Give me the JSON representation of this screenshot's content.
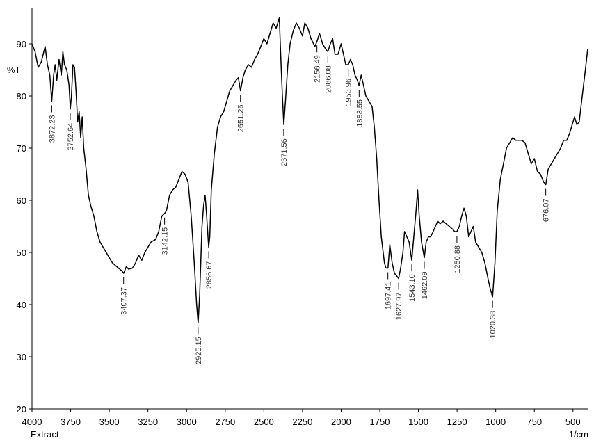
{
  "chart_data": {
    "type": "line",
    "y_label": "%T",
    "x_label": "1/cm",
    "legend_text": "Extract",
    "xlim": [
      4000,
      400
    ],
    "ylim": [
      20,
      96.8
    ],
    "xticks": [
      4000,
      3750,
      3500,
      3250,
      3000,
      2750,
      2500,
      2250,
      2000,
      1750,
      1500,
      1250,
      1000,
      750,
      500
    ],
    "yticks": [
      20,
      30,
      40,
      50,
      60,
      70,
      80,
      90
    ],
    "x": [
      4000,
      3980,
      3960,
      3940,
      3915,
      3900,
      3885,
      3872,
      3860,
      3850,
      3840,
      3825,
      3810,
      3800,
      3790,
      3775,
      3760,
      3752,
      3745,
      3735,
      3725,
      3715,
      3705,
      3695,
      3685,
      3675,
      3665,
      3650,
      3635,
      3620,
      3600,
      3580,
      3560,
      3540,
      3520,
      3500,
      3480,
      3460,
      3440,
      3420,
      3407,
      3390,
      3375,
      3350,
      3330,
      3310,
      3290,
      3270,
      3250,
      3230,
      3200,
      3180,
      3160,
      3142,
      3130,
      3110,
      3090,
      3070,
      3050,
      3030,
      3010,
      2990,
      2970,
      2950,
      2935,
      2925,
      2915,
      2900,
      2890,
      2880,
      2870,
      2857,
      2850,
      2840,
      2820,
      2800,
      2780,
      2760,
      2740,
      2720,
      2700,
      2680,
      2665,
      2651,
      2635,
      2620,
      2600,
      2580,
      2560,
      2540,
      2520,
      2500,
      2480,
      2460,
      2440,
      2420,
      2400,
      2390,
      2380,
      2371,
      2360,
      2345,
      2330,
      2310,
      2290,
      2270,
      2250,
      2235,
      2215,
      2195,
      2170,
      2156,
      2140,
      2120,
      2100,
      2086,
      2070,
      2055,
      2040,
      2020,
      2000,
      1985,
      1970,
      1954,
      1940,
      1925,
      1910,
      1895,
      1884,
      1870,
      1855,
      1840,
      1820,
      1800,
      1785,
      1770,
      1755,
      1740,
      1720,
      1710,
      1697,
      1685,
      1670,
      1655,
      1640,
      1628,
      1615,
      1600,
      1590,
      1575,
      1560,
      1543,
      1530,
      1515,
      1505,
      1495,
      1480,
      1462,
      1450,
      1435,
      1420,
      1405,
      1390,
      1375,
      1360,
      1340,
      1320,
      1300,
      1280,
      1265,
      1251,
      1235,
      1220,
      1205,
      1190,
      1175,
      1160,
      1145,
      1130,
      1110,
      1090,
      1070,
      1050,
      1035,
      1020,
      1005,
      990,
      970,
      950,
      930,
      910,
      890,
      870,
      850,
      830,
      810,
      790,
      770,
      750,
      730,
      710,
      690,
      676,
      660,
      640,
      620,
      600,
      580,
      560,
      540,
      520,
      500,
      490,
      475,
      460,
      440,
      420,
      405
    ],
    "series": [
      {
        "color": "#000000",
        "values": [
          90,
          88.5,
          85.5,
          86.5,
          89.5,
          86,
          84,
          79,
          84,
          86,
          83,
          87,
          84,
          88.5,
          86,
          85,
          82,
          77.5,
          80,
          86,
          85.5,
          81,
          75,
          77,
          72,
          76,
          70,
          66,
          61,
          59,
          57,
          54,
          52,
          51,
          50,
          49,
          48,
          47.5,
          47,
          46.5,
          46,
          47.3,
          46.8,
          47,
          48,
          49.5,
          48.5,
          50,
          51,
          52,
          52.5,
          54,
          57,
          57.5,
          58,
          61,
          62,
          62.5,
          64,
          65.5,
          65,
          63.5,
          57,
          48,
          40,
          36.5,
          42,
          55,
          59,
          61,
          57,
          51,
          53,
          62,
          69,
          74,
          76,
          77,
          79,
          81,
          82,
          83,
          83.5,
          81,
          83.5,
          85,
          86,
          85.5,
          87,
          88,
          89.5,
          91,
          90,
          92,
          94,
          93,
          95,
          87,
          80,
          74.5,
          79,
          86,
          90,
          92.5,
          94,
          93,
          91.5,
          94,
          93,
          91,
          89.5,
          90.5,
          92,
          90,
          89,
          88.5,
          90,
          91,
          88,
          88,
          90,
          88,
          86,
          86,
          87,
          86,
          84,
          83,
          82,
          84,
          82,
          80,
          79,
          78,
          74,
          68,
          60,
          53,
          48,
          47,
          47,
          51.5,
          48,
          46,
          45.5,
          45,
          47,
          50,
          54,
          53,
          52,
          48.5,
          53,
          58,
          62,
          57,
          52,
          49,
          52,
          53,
          53,
          54,
          55,
          56,
          55.5,
          56,
          55.5,
          55,
          54.5,
          54,
          54,
          55,
          57,
          58.5,
          57,
          53,
          54,
          55,
          52,
          51,
          50,
          48,
          45,
          43,
          41.5,
          48,
          58,
          64,
          67,
          70,
          71,
          72,
          71.5,
          71.5,
          71.5,
          71,
          69,
          67,
          68,
          65.5,
          65,
          63.5,
          63,
          66,
          67,
          68,
          69,
          70,
          71.5,
          71.5,
          73,
          75,
          76,
          74.5,
          75,
          80,
          85,
          89
        ]
      }
    ],
    "annotations": [
      {
        "x": 3872.23,
        "y": 79,
        "label": "3872.23"
      },
      {
        "x": 3752.64,
        "y": 77.5,
        "label": "3752.64"
      },
      {
        "x": 3407.37,
        "y": 46,
        "label": "3407.37"
      },
      {
        "x": 3142.15,
        "y": 57.5,
        "label": "3142.15"
      },
      {
        "x": 2925.15,
        "y": 36.5,
        "label": "2925.15"
      },
      {
        "x": 2856.67,
        "y": 51,
        "label": "2856.67"
      },
      {
        "x": 2651.25,
        "y": 81,
        "label": "2651.25"
      },
      {
        "x": 2371.56,
        "y": 74.5,
        "label": "2371.56"
      },
      {
        "x": 2156.49,
        "y": 90.5,
        "label": "2156.49"
      },
      {
        "x": 2086.08,
        "y": 88.5,
        "label": "2086.08"
      },
      {
        "x": 1953.96,
        "y": 86,
        "label": "1953.96"
      },
      {
        "x": 1883.55,
        "y": 82,
        "label": "1883.55"
      },
      {
        "x": 1697.41,
        "y": 47,
        "label": "1697.41"
      },
      {
        "x": 1627.97,
        "y": 45,
        "label": "1627.97"
      },
      {
        "x": 1543.1,
        "y": 48.5,
        "label": "1543.10"
      },
      {
        "x": 1462.09,
        "y": 49,
        "label": "1462.09"
      },
      {
        "x": 1250.88,
        "y": 54,
        "label": "1250.88"
      },
      {
        "x": 1020.38,
        "y": 41.5,
        "label": "1020.38"
      },
      {
        "x": 676.07,
        "y": 63,
        "label": "676.07"
      }
    ]
  }
}
